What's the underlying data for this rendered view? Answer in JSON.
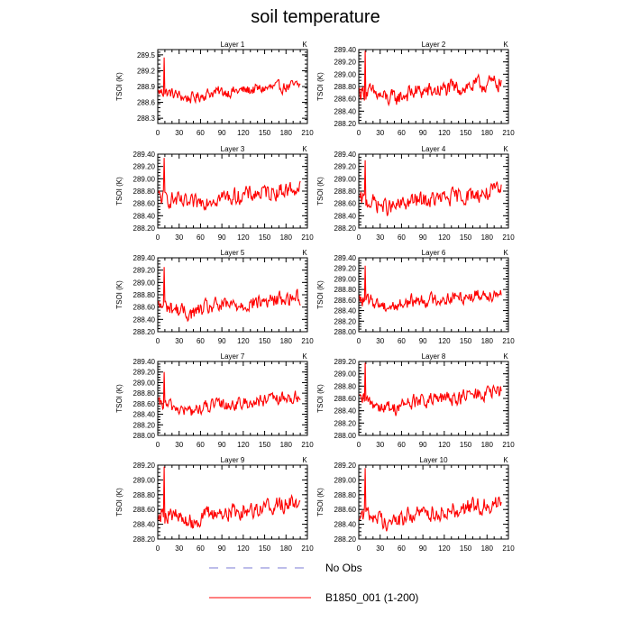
{
  "figure": {
    "title": "soil temperature",
    "legend": [
      {
        "label": "No Obs",
        "color": "#7b7bd6",
        "style": "dashed"
      },
      {
        "label": "B1850_001 (1-200)",
        "color": "#ff0000",
        "style": "solid"
      }
    ]
  },
  "chart_data": [
    {
      "type": "line",
      "title": "Layer 1",
      "unit_label": "K",
      "ylabel": "TSOI  (K)",
      "xlim": [
        0,
        210
      ],
      "x_ticks": [
        0,
        30,
        60,
        90,
        120,
        150,
        180,
        210
      ],
      "ylim": [
        288.2,
        289.6
      ],
      "y_ticks": [
        288.3,
        288.6,
        288.9,
        289.2,
        289.5
      ],
      "y_tick_labels": [
        "288.3",
        "288.6",
        "288.9",
        "289.2",
        "289.5"
      ],
      "y_mean": 288.8,
      "y_amp": 0.16,
      "trend": 0.12,
      "spike": 289.45,
      "series": [
        {
          "name": "B1850_001 (1-200)",
          "color": "#ff0000"
        }
      ]
    },
    {
      "type": "line",
      "title": "Layer 2",
      "unit_label": "K",
      "ylabel": "TSOI  (K)",
      "xlim": [
        0,
        210
      ],
      "x_ticks": [
        0,
        30,
        60,
        90,
        120,
        150,
        180,
        210
      ],
      "ylim": [
        288.2,
        289.4
      ],
      "y_ticks": [
        288.2,
        288.4,
        288.6,
        288.8,
        289.0,
        289.2,
        289.4
      ],
      "y_tick_labels": [
        "288.20",
        "288.40",
        "288.60",
        "288.80",
        "289.00",
        "289.20",
        "289.40"
      ],
      "y_mean": 288.72,
      "y_amp": 0.2,
      "trend": 0.15,
      "spike": 289.38,
      "series": [
        {
          "name": "B1850_001 (1-200)",
          "color": "#ff0000"
        }
      ]
    },
    {
      "type": "line",
      "title": "Layer 3",
      "unit_label": "K",
      "ylabel": "TSOI  (K)",
      "xlim": [
        0,
        210
      ],
      "x_ticks": [
        0,
        30,
        60,
        90,
        120,
        150,
        180,
        210
      ],
      "ylim": [
        288.2,
        289.4
      ],
      "y_ticks": [
        288.2,
        288.4,
        288.6,
        288.8,
        289.0,
        289.2,
        289.4
      ],
      "y_tick_labels": [
        "288.20",
        "288.40",
        "288.60",
        "288.80",
        "289.00",
        "289.20",
        "289.40"
      ],
      "y_mean": 288.7,
      "y_amp": 0.2,
      "trend": 0.15,
      "spike": 289.34,
      "series": [
        {
          "name": "B1850_001 (1-200)",
          "color": "#ff0000"
        }
      ]
    },
    {
      "type": "line",
      "title": "Layer 4",
      "unit_label": "K",
      "ylabel": "TSOI  (K)",
      "xlim": [
        0,
        210
      ],
      "x_ticks": [
        0,
        30,
        60,
        90,
        120,
        150,
        180,
        210
      ],
      "ylim": [
        288.2,
        289.4
      ],
      "y_ticks": [
        288.2,
        288.4,
        288.6,
        288.8,
        289.0,
        289.2,
        289.4
      ],
      "y_tick_labels": [
        "288.20",
        "288.40",
        "288.60",
        "288.80",
        "289.00",
        "289.20",
        "289.40"
      ],
      "y_mean": 288.65,
      "y_amp": 0.2,
      "trend": 0.15,
      "spike": 289.3,
      "series": [
        {
          "name": "B1850_001 (1-200)",
          "color": "#ff0000"
        }
      ]
    },
    {
      "type": "line",
      "title": "Layer 5",
      "unit_label": "K",
      "ylabel": "TSOI  (K)",
      "xlim": [
        0,
        210
      ],
      "x_ticks": [
        0,
        30,
        60,
        90,
        120,
        150,
        180,
        210
      ],
      "ylim": [
        288.2,
        289.4
      ],
      "y_ticks": [
        288.2,
        288.4,
        288.6,
        288.8,
        289.0,
        289.2,
        289.4
      ],
      "y_tick_labels": [
        "288.20",
        "288.40",
        "288.60",
        "288.80",
        "289.00",
        "289.20",
        "289.40"
      ],
      "y_mean": 288.62,
      "y_amp": 0.19,
      "trend": 0.15,
      "spike": 289.25,
      "series": [
        {
          "name": "B1850_001 (1-200)",
          "color": "#ff0000"
        }
      ]
    },
    {
      "type": "line",
      "title": "Layer 6",
      "unit_label": "K",
      "ylabel": "TSOI  (K)",
      "xlim": [
        0,
        210
      ],
      "x_ticks": [
        0,
        30,
        60,
        90,
        120,
        150,
        180,
        210
      ],
      "ylim": [
        288.0,
        289.4
      ],
      "y_ticks": [
        288.0,
        288.2,
        288.4,
        288.6,
        288.8,
        289.0,
        289.2,
        289.4
      ],
      "y_tick_labels": [
        "288.00",
        "288.20",
        "288.40",
        "288.60",
        "288.80",
        "289.00",
        "289.20",
        "289.40"
      ],
      "y_mean": 288.6,
      "y_amp": 0.19,
      "trend": 0.15,
      "spike": 289.25,
      "series": [
        {
          "name": "B1850_001 (1-200)",
          "color": "#ff0000"
        }
      ]
    },
    {
      "type": "line",
      "title": "Layer 7",
      "unit_label": "K",
      "ylabel": "TSOI  (K)",
      "xlim": [
        0,
        210
      ],
      "x_ticks": [
        0,
        30,
        60,
        90,
        120,
        150,
        180,
        210
      ],
      "ylim": [
        288.0,
        289.4
      ],
      "y_ticks": [
        288.0,
        288.2,
        288.4,
        288.6,
        288.8,
        289.0,
        289.2,
        289.4
      ],
      "y_tick_labels": [
        "288.00",
        "288.20",
        "288.40",
        "288.60",
        "288.80",
        "289.00",
        "289.20",
        "289.40"
      ],
      "y_mean": 288.58,
      "y_amp": 0.18,
      "trend": 0.15,
      "spike": 289.2,
      "series": [
        {
          "name": "B1850_001 (1-200)",
          "color": "#ff0000"
        }
      ]
    },
    {
      "type": "line",
      "title": "Layer 8",
      "unit_label": "K",
      "ylabel": "TSOI  (K)",
      "xlim": [
        0,
        210
      ],
      "x_ticks": [
        0,
        30,
        60,
        90,
        120,
        150,
        180,
        210
      ],
      "ylim": [
        288.0,
        289.2
      ],
      "y_ticks": [
        288.0,
        288.2,
        288.4,
        288.6,
        288.8,
        289.0,
        289.2
      ],
      "y_tick_labels": [
        "288.00",
        "288.20",
        "288.40",
        "288.60",
        "288.80",
        "289.00",
        "289.20"
      ],
      "y_mean": 288.56,
      "y_amp": 0.18,
      "trend": 0.15,
      "spike": 289.18,
      "series": [
        {
          "name": "B1850_001 (1-200)",
          "color": "#ff0000"
        }
      ]
    },
    {
      "type": "line",
      "title": "Layer 9",
      "unit_label": "K",
      "ylabel": "TSOI  (K)",
      "xlim": [
        0,
        210
      ],
      "x_ticks": [
        0,
        30,
        60,
        90,
        120,
        150,
        180,
        210
      ],
      "ylim": [
        288.2,
        289.2
      ],
      "y_ticks": [
        288.2,
        288.4,
        288.6,
        288.8,
        289.0,
        289.2
      ],
      "y_tick_labels": [
        "288.20",
        "288.40",
        "288.60",
        "288.80",
        "289.00",
        "289.20"
      ],
      "y_mean": 288.56,
      "y_amp": 0.17,
      "trend": 0.15,
      "spike": 289.18,
      "series": [
        {
          "name": "B1850_001 (1-200)",
          "color": "#ff0000"
        }
      ]
    },
    {
      "type": "line",
      "title": "Layer 10",
      "unit_label": "K",
      "ylabel": "TSOI  (K)",
      "xlim": [
        0,
        210
      ],
      "x_ticks": [
        0,
        30,
        60,
        90,
        120,
        150,
        180,
        210
      ],
      "ylim": [
        288.2,
        289.2
      ],
      "y_ticks": [
        288.2,
        288.4,
        288.6,
        288.8,
        289.0,
        289.2
      ],
      "y_tick_labels": [
        "288.20",
        "288.40",
        "288.60",
        "288.80",
        "289.00",
        "289.20"
      ],
      "y_mean": 288.55,
      "y_amp": 0.17,
      "trend": 0.15,
      "spike": 289.16,
      "series": [
        {
          "name": "B1850_001 (1-200)",
          "color": "#ff0000"
        }
      ]
    }
  ]
}
